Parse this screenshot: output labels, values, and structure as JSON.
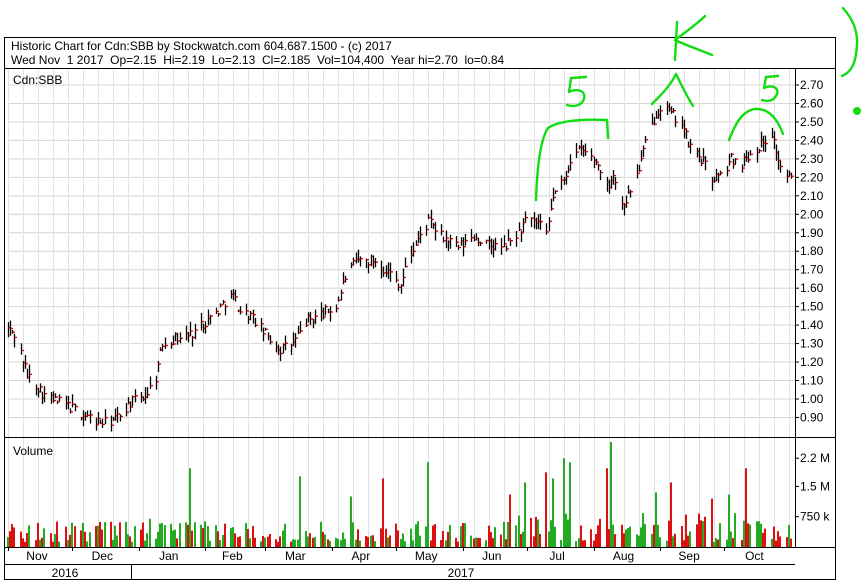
{
  "header": {
    "line1": "Historic Chart for Cdn:SBB by Stockwatch.com 604.687.1500 - (c) 2017",
    "line2": "Wed Nov  1 2017  Op=2.15  Hi=2.19  Lo=2.13  Cl=2.185  Vol=104,400  Year hi=2.70  lo=0.84"
  },
  "symbol_label": "Cdn:SBB",
  "volume_label": "Volume",
  "annotations": [
    "5",
    "K",
    "5"
  ],
  "colors": {
    "up_bar": "#000000",
    "close_tick": "#dd0000",
    "vol_up": "#22aa22",
    "vol_down": "#dd1111",
    "marker": "#11dd11"
  },
  "chart_data": [
    {
      "type": "ohlc",
      "title": "Historic Chart for Cdn:SBB",
      "ylabel": "",
      "ylim": [
        0.84,
        2.75
      ],
      "y_ticks": [
        "2.70",
        "2.60",
        "2.50",
        "2.40",
        "2.30",
        "2.20",
        "2.10",
        "2.00",
        "1.90",
        "1.80",
        "1.70",
        "1.60",
        "1.50",
        "1.40",
        "1.30",
        "1.20",
        "1.10",
        "1.00",
        "0.90"
      ],
      "x_month_labels": [
        "Nov",
        "Dec",
        "Jan",
        "Feb",
        "Mar",
        "Apr",
        "May",
        "Jun",
        "Jul",
        "Aug",
        "Sep",
        "Oct"
      ],
      "x_year_labels": [
        "2016",
        "2017"
      ],
      "anchors": [
        [
          "2016-11-01",
          1.38
        ],
        [
          "2016-11-04",
          1.35
        ],
        [
          "2016-11-07",
          1.25
        ],
        [
          "2016-11-10",
          1.13
        ],
        [
          "2016-11-14",
          1.08
        ],
        [
          "2016-11-18",
          1.02
        ],
        [
          "2016-11-23",
          0.99
        ],
        [
          "2016-11-28",
          0.97
        ],
        [
          "2016-12-02",
          0.94
        ],
        [
          "2016-12-07",
          0.91
        ],
        [
          "2016-12-12",
          0.88
        ],
        [
          "2016-12-16",
          0.87
        ],
        [
          "2016-12-21",
          0.89
        ],
        [
          "2016-12-28",
          0.98
        ],
        [
          "2017-01-04",
          1.02
        ],
        [
          "2017-01-09",
          1.12
        ],
        [
          "2017-01-12",
          1.3
        ],
        [
          "2017-01-18",
          1.33
        ],
        [
          "2017-01-25",
          1.35
        ],
        [
          "2017-02-01",
          1.42
        ],
        [
          "2017-02-07",
          1.48
        ],
        [
          "2017-02-10",
          1.53
        ],
        [
          "2017-02-14",
          1.56
        ],
        [
          "2017-02-17",
          1.48
        ],
        [
          "2017-02-22",
          1.45
        ],
        [
          "2017-03-01",
          1.35
        ],
        [
          "2017-03-08",
          1.27
        ],
        [
          "2017-03-14",
          1.3
        ],
        [
          "2017-03-20",
          1.42
        ],
        [
          "2017-03-27",
          1.46
        ],
        [
          "2017-04-03",
          1.5
        ],
        [
          "2017-04-07",
          1.66
        ],
        [
          "2017-04-13",
          1.75
        ],
        [
          "2017-04-21",
          1.75
        ],
        [
          "2017-04-28",
          1.68
        ],
        [
          "2017-05-03",
          1.62
        ],
        [
          "2017-05-06",
          1.74
        ],
        [
          "2017-05-11",
          1.86
        ],
        [
          "2017-05-16",
          1.96
        ],
        [
          "2017-05-22",
          1.88
        ],
        [
          "2017-05-30",
          1.82
        ],
        [
          "2017-06-06",
          1.88
        ],
        [
          "2017-06-13",
          1.83
        ],
        [
          "2017-06-20",
          1.82
        ],
        [
          "2017-06-27",
          1.9
        ],
        [
          "2017-06-30",
          1.96
        ],
        [
          "2017-07-06",
          1.95
        ],
        [
          "2017-07-10",
          1.88
        ],
        [
          "2017-07-13",
          2.1
        ],
        [
          "2017-07-18",
          2.18
        ],
        [
          "2017-07-21",
          2.3
        ],
        [
          "2017-07-26",
          2.35
        ],
        [
          "2017-08-01",
          2.3
        ],
        [
          "2017-08-04",
          2.25
        ],
        [
          "2017-08-07",
          2.15
        ],
        [
          "2017-08-10",
          2.22
        ],
        [
          "2017-08-14",
          2.05
        ],
        [
          "2017-08-17",
          2.1
        ],
        [
          "2017-08-22",
          2.25
        ],
        [
          "2017-08-25",
          2.38
        ],
        [
          "2017-08-30",
          2.55
        ],
        [
          "2017-09-02",
          2.6
        ],
        [
          "2017-09-06",
          2.54
        ],
        [
          "2017-09-11",
          2.5
        ],
        [
          "2017-09-14",
          2.38
        ],
        [
          "2017-09-20",
          2.3
        ],
        [
          "2017-09-25",
          2.2
        ],
        [
          "2017-09-29",
          2.2
        ],
        [
          "2017-10-04",
          2.3
        ],
        [
          "2017-10-09",
          2.28
        ],
        [
          "2017-10-13",
          2.33
        ],
        [
          "2017-10-18",
          2.38
        ],
        [
          "2017-10-23",
          2.44
        ],
        [
          "2017-10-27",
          2.25
        ],
        [
          "2017-11-01",
          2.185
        ]
      ]
    },
    {
      "type": "bar",
      "title": "Volume",
      "y_ticks": [
        "2.2 M",
        "1.5 M",
        "750 k"
      ],
      "ylim": [
        0,
        2700000
      ],
      "spikes": [
        [
          "2017-01-06",
          700000
        ],
        [
          "2017-01-25",
          1950000
        ],
        [
          "2017-03-17",
          1750000
        ],
        [
          "2017-04-10",
          1250000
        ],
        [
          "2017-04-25",
          1700000
        ],
        [
          "2017-05-16",
          2100000
        ],
        [
          "2017-06-23",
          1300000
        ],
        [
          "2017-06-30",
          1600000
        ],
        [
          "2017-07-10",
          1850000
        ],
        [
          "2017-07-13",
          1700000
        ],
        [
          "2017-07-18",
          2200000
        ],
        [
          "2017-07-21",
          2100000
        ],
        [
          "2017-08-07",
          1950000
        ],
        [
          "2017-08-09",
          2600000
        ],
        [
          "2017-08-30",
          1350000
        ],
        [
          "2017-09-02",
          2000000
        ],
        [
          "2017-09-06",
          1600000
        ],
        [
          "2017-09-25",
          1200000
        ],
        [
          "2017-10-03",
          1300000
        ],
        [
          "2017-10-11",
          1950000
        ]
      ]
    }
  ]
}
